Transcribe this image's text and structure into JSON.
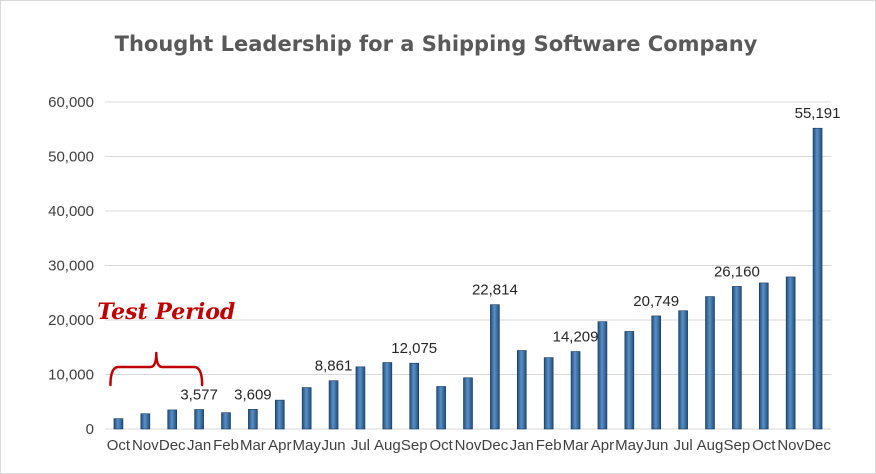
{
  "chart_data": {
    "type": "bar",
    "title": "Thought Leadership for a Shipping Software Company",
    "xlabel": "",
    "ylabel": "",
    "ylim": [
      0,
      60000
    ],
    "yticks": [
      0,
      10000,
      20000,
      30000,
      40000,
      50000,
      60000
    ],
    "ytick_labels": [
      "0",
      "10,000",
      "20,000",
      "30,000",
      "40,000",
      "50,000",
      "60,000"
    ],
    "grid": true,
    "legend": "none",
    "categories": [
      "Oct",
      "Nov",
      "Dec",
      "Jan",
      "Feb",
      "Mar",
      "Apr",
      "May",
      "Jun",
      "Jul",
      "Aug",
      "Sep",
      "Oct",
      "Nov",
      "Dec",
      "Jan",
      "Feb",
      "Mar",
      "Apr",
      "May",
      "Jun",
      "Jul",
      "Aug",
      "Sep",
      "Oct",
      "Nov",
      "Dec"
    ],
    "values": [
      1900,
      2800,
      3500,
      3577,
      3000,
      3609,
      5300,
      7600,
      8861,
      11400,
      12200,
      12075,
      7800,
      9400,
      22814,
      14400,
      13100,
      14209,
      19700,
      17900,
      20749,
      21700,
      24300,
      26160,
      26800,
      27900,
      55191
    ],
    "data_labels": [
      {
        "index": 3,
        "text": "3,577"
      },
      {
        "index": 5,
        "text": "3,609"
      },
      {
        "index": 8,
        "text": "8,861"
      },
      {
        "index": 11,
        "text": "12,075"
      },
      {
        "index": 14,
        "text": "22,814"
      },
      {
        "index": 17,
        "text": "14,209"
      },
      {
        "index": 20,
        "text": "20,749"
      },
      {
        "index": 23,
        "text": "26,160"
      },
      {
        "index": 26,
        "text": "55,191"
      }
    ],
    "annotations": [
      {
        "text": "Test Period",
        "from_index": 0,
        "to_index": 3
      }
    ],
    "colors": {
      "bar": "#1f4e79",
      "bar_highlight": "#5b8fc7",
      "grid": "#d9d9d9",
      "annotation": "#c00000"
    }
  }
}
